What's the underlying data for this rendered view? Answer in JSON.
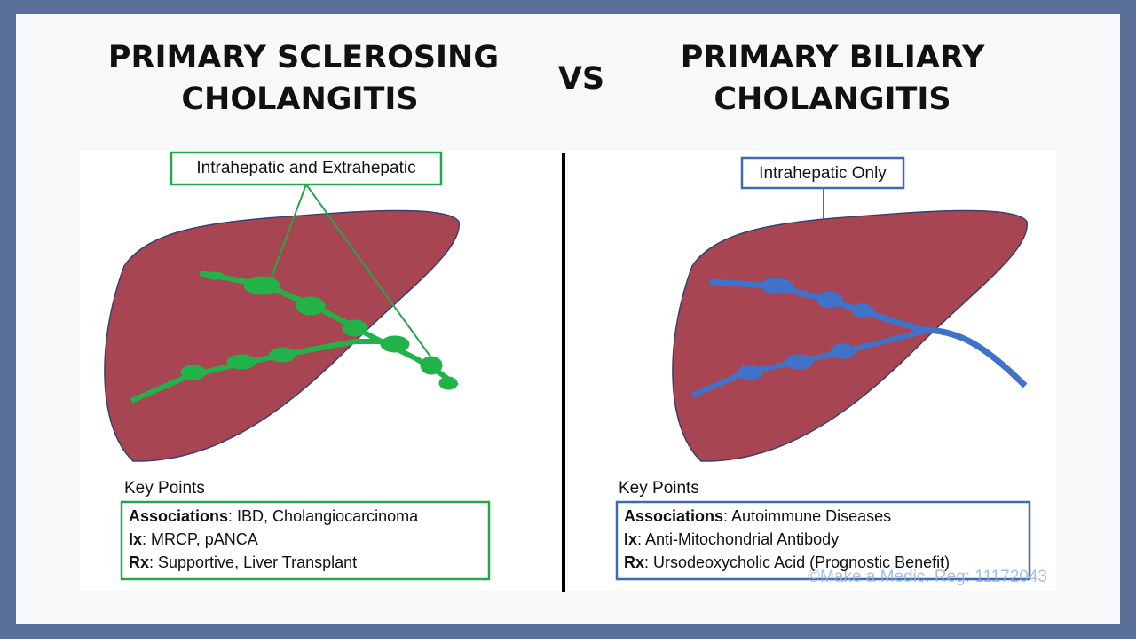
{
  "left": {
    "title": [
      "PRIMARY SCLEROSING",
      "CHOLANGITIS"
    ],
    "label": "Intrahepatic and Extrahepatic",
    "key_points_heading": "Key Points",
    "key_points": [
      {
        "label": "Associations",
        "text": ": IBD, Cholangiocarcinoma"
      },
      {
        "label": "Ix",
        "text": ": MRCP, pANCA"
      },
      {
        "label": "Rx",
        "text": ": Supportive, Liver Transplant"
      }
    ]
  },
  "vs": "VS",
  "right": {
    "title": [
      "PRIMARY BILIARY",
      "CHOLANGITIS"
    ],
    "label": "Intrahepatic Only",
    "key_points_heading": "Key Points",
    "key_points": [
      {
        "label": "Associations",
        "text": ": Autoimmune Diseases"
      },
      {
        "label": "Ix",
        "text": ": Anti-Mitochondrial Antibody"
      },
      {
        "label": "Rx",
        "text": ": Ursodeoxycholic Acid (Prognostic Benefit)"
      }
    ]
  },
  "watermark": "©Make a Medic. Reg: 11172043"
}
